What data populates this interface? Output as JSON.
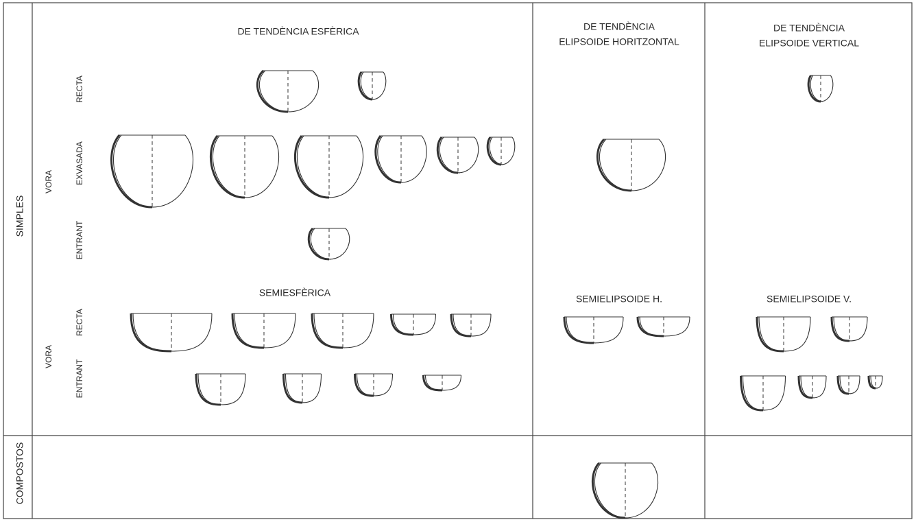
{
  "columns": [
    {
      "lines": [
        "DE TENDÈNCIA ESFÈRICA"
      ]
    },
    {
      "lines": [
        "DE TENDÈNCIA",
        "ELIPSOIDE HORITZONTAL"
      ]
    },
    {
      "lines": [
        "DE TENDÈNCIA",
        "ELIPSOIDE VERTICAL"
      ]
    }
  ],
  "rows": [
    "SIMPLES",
    "COMPOSTOS"
  ],
  "sub_headers": [
    "SEMIESFÈRICA",
    "SEMIELIPSOIDE H.",
    "SEMIELIPSOIDE V."
  ],
  "spherical_groups": {
    "label": "VORA",
    "variants": [
      "RECTA",
      "EXVASADA",
      "ENTRANT"
    ]
  },
  "semi_groups": {
    "label": "VORA",
    "variants": [
      "RECTA",
      "ENTRANT"
    ]
  }
}
